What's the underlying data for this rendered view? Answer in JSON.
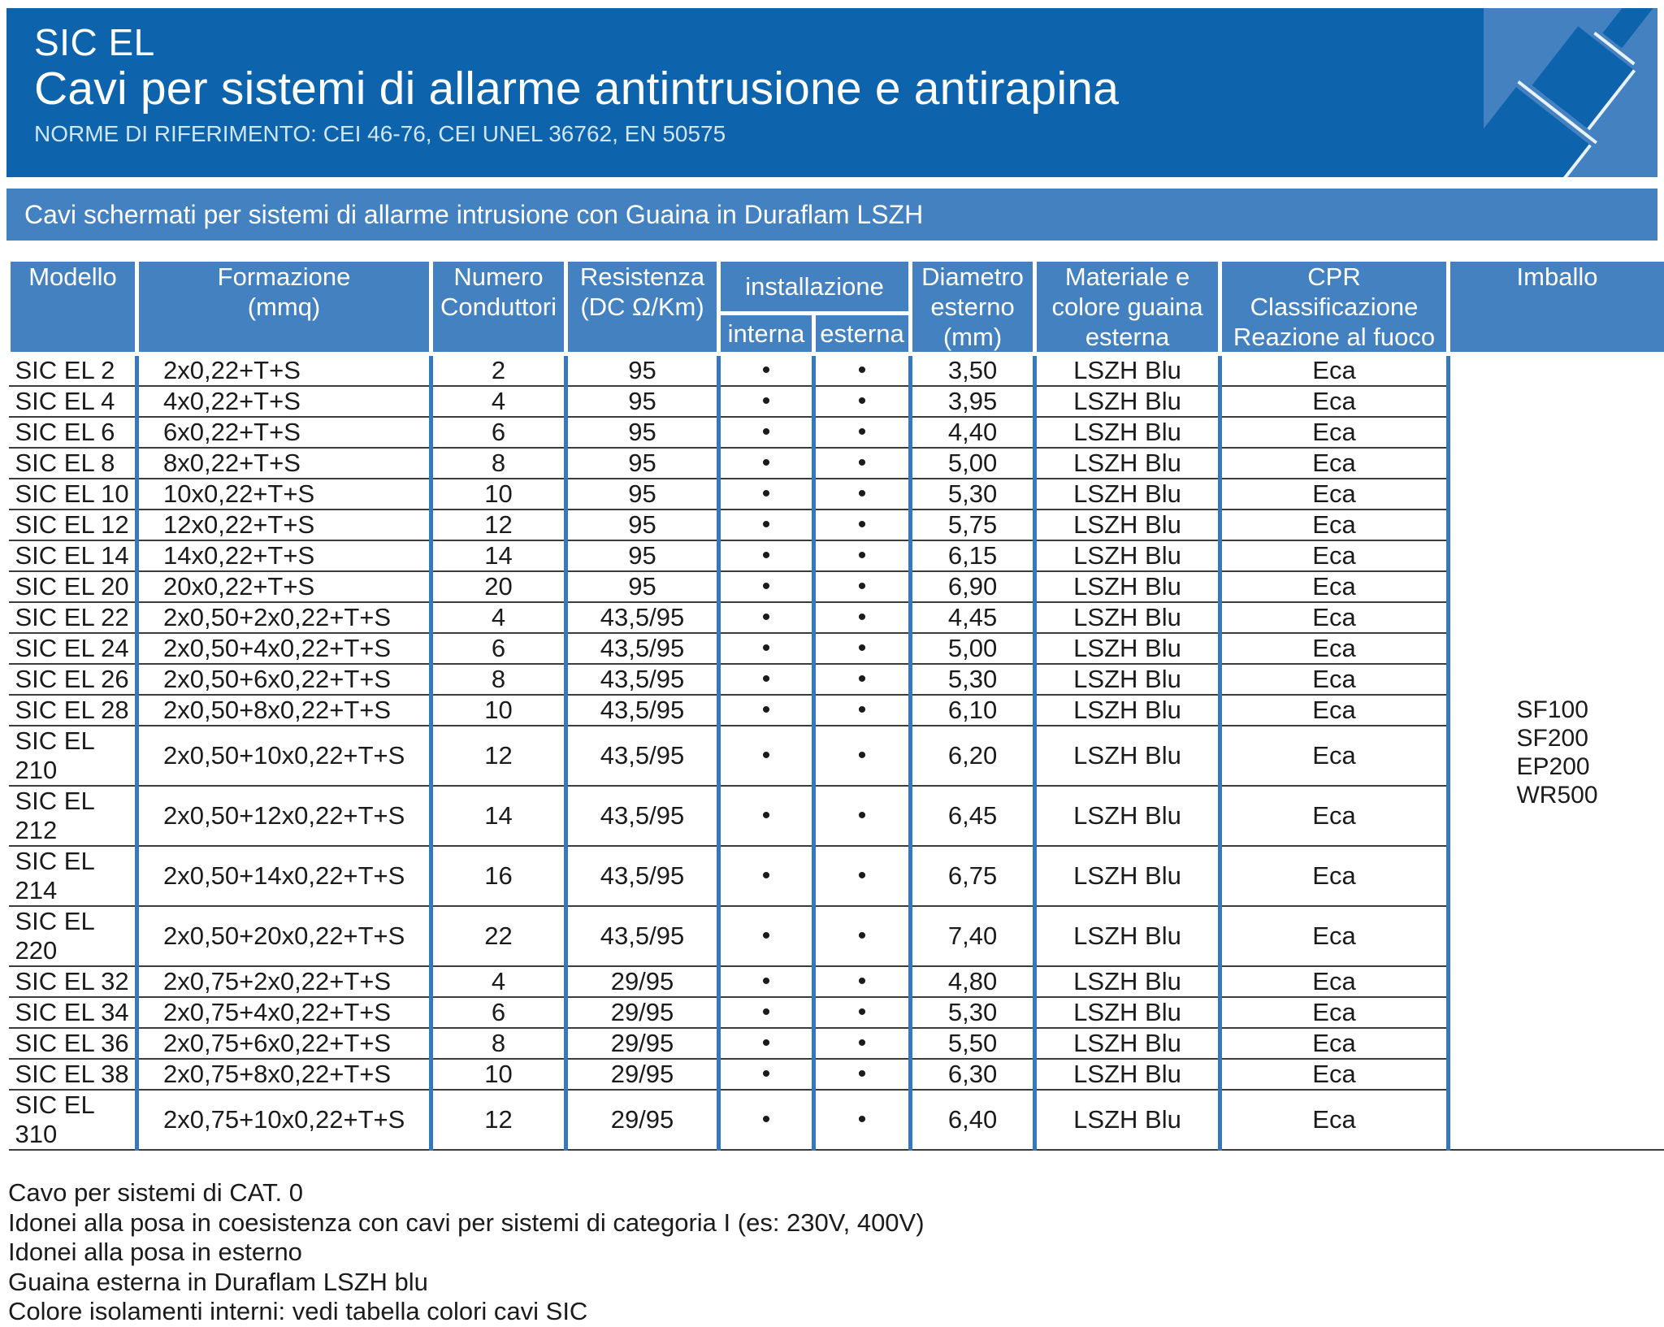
{
  "header": {
    "title": "SIC EL",
    "subtitle": "Cavi per sistemi di allarme antintrusione e antirapina",
    "norms": "NORME DI RIFERIMENTO: CEI 46-76, CEI UNEL 36762, EN 50575"
  },
  "band": {
    "text": "Cavi schermati per sistemi di allarme intrusione con Guaina in Duraflam LSZH"
  },
  "colors": {
    "header_bg": "#0d63ac",
    "band_bg": "#4381c1",
    "grid_blue": "#3579bd",
    "row_line": "#3c3c3c"
  },
  "table": {
    "columns": {
      "modello": "Modello",
      "formazione": "Formazione\n(mmq)",
      "numero": "Numero\nConduttori",
      "resistenza": "Resistenza\n(DC Ω/Km)",
      "installazione": "installazione",
      "interna": "interna",
      "esterna": "esterna",
      "diametro": "Diametro\nesterno\n(mm)",
      "materiale": "Materiale e\ncolore guaina\nesterna",
      "cpr": "CPR\nClassificazione\nReazione al fuoco",
      "imballo": "Imballo"
    },
    "imballo": [
      "SF100",
      "SF200",
      "EP200",
      "WR500"
    ],
    "rows": [
      {
        "model": "SIC EL 2",
        "formazione": "2x0,22+T+S",
        "conduttori": "2",
        "resistenza": "95",
        "interna": "•",
        "esterna": "•",
        "diametro": "3,50",
        "guaina": "LSZH Blu",
        "cpr": "Eca"
      },
      {
        "model": "SIC EL 4",
        "formazione": "4x0,22+T+S",
        "conduttori": "4",
        "resistenza": "95",
        "interna": "•",
        "esterna": "•",
        "diametro": "3,95",
        "guaina": "LSZH Blu",
        "cpr": "Eca"
      },
      {
        "model": "SIC EL 6",
        "formazione": "6x0,22+T+S",
        "conduttori": "6",
        "resistenza": "95",
        "interna": "•",
        "esterna": "•",
        "diametro": "4,40",
        "guaina": "LSZH Blu",
        "cpr": "Eca"
      },
      {
        "model": "SIC EL 8",
        "formazione": "8x0,22+T+S",
        "conduttori": "8",
        "resistenza": "95",
        "interna": "•",
        "esterna": "•",
        "diametro": "5,00",
        "guaina": "LSZH Blu",
        "cpr": "Eca"
      },
      {
        "model": "SIC EL 10",
        "formazione": "10x0,22+T+S",
        "conduttori": "10",
        "resistenza": "95",
        "interna": "•",
        "esterna": "•",
        "diametro": "5,30",
        "guaina": "LSZH Blu",
        "cpr": "Eca"
      },
      {
        "model": "SIC EL 12",
        "formazione": "12x0,22+T+S",
        "conduttori": "12",
        "resistenza": "95",
        "interna": "•",
        "esterna": "•",
        "diametro": "5,75",
        "guaina": "LSZH Blu",
        "cpr": "Eca"
      },
      {
        "model": "SIC EL 14",
        "formazione": "14x0,22+T+S",
        "conduttori": "14",
        "resistenza": "95",
        "interna": "•",
        "esterna": "•",
        "diametro": "6,15",
        "guaina": "LSZH Blu",
        "cpr": "Eca"
      },
      {
        "model": "SIC EL 20",
        "formazione": "20x0,22+T+S",
        "conduttori": "20",
        "resistenza": "95",
        "interna": "•",
        "esterna": "•",
        "diametro": "6,90",
        "guaina": "LSZH Blu",
        "cpr": "Eca"
      },
      {
        "model": "SIC EL 22",
        "formazione": "2x0,50+2x0,22+T+S",
        "conduttori": "4",
        "resistenza": "43,5/95",
        "interna": "•",
        "esterna": "•",
        "diametro": "4,45",
        "guaina": "LSZH Blu",
        "cpr": "Eca"
      },
      {
        "model": "SIC EL 24",
        "formazione": "2x0,50+4x0,22+T+S",
        "conduttori": "6",
        "resistenza": "43,5/95",
        "interna": "•",
        "esterna": "•",
        "diametro": "5,00",
        "guaina": "LSZH Blu",
        "cpr": "Eca"
      },
      {
        "model": "SIC EL 26",
        "formazione": "2x0,50+6x0,22+T+S",
        "conduttori": "8",
        "resistenza": "43,5/95",
        "interna": "•",
        "esterna": "•",
        "diametro": "5,30",
        "guaina": "LSZH Blu",
        "cpr": "Eca"
      },
      {
        "model": "SIC EL 28",
        "formazione": "2x0,50+8x0,22+T+S",
        "conduttori": "10",
        "resistenza": "43,5/95",
        "interna": "•",
        "esterna": "•",
        "diametro": "6,10",
        "guaina": "LSZH Blu",
        "cpr": "Eca"
      },
      {
        "model": "SIC EL 210",
        "formazione": "2x0,50+10x0,22+T+S",
        "conduttori": "12",
        "resistenza": "43,5/95",
        "interna": "•",
        "esterna": "•",
        "diametro": "6,20",
        "guaina": "LSZH Blu",
        "cpr": "Eca"
      },
      {
        "model": "SIC EL 212",
        "formazione": "2x0,50+12x0,22+T+S",
        "conduttori": "14",
        "resistenza": "43,5/95",
        "interna": "•",
        "esterna": "•",
        "diametro": "6,45",
        "guaina": "LSZH Blu",
        "cpr": "Eca"
      },
      {
        "model": "SIC EL 214",
        "formazione": "2x0,50+14x0,22+T+S",
        "conduttori": "16",
        "resistenza": "43,5/95",
        "interna": "•",
        "esterna": "•",
        "diametro": "6,75",
        "guaina": "LSZH Blu",
        "cpr": "Eca"
      },
      {
        "model": "SIC EL 220",
        "formazione": "2x0,50+20x0,22+T+S",
        "conduttori": "22",
        "resistenza": "43,5/95",
        "interna": "•",
        "esterna": "•",
        "diametro": "7,40",
        "guaina": "LSZH Blu",
        "cpr": "Eca"
      },
      {
        "model": "SIC EL 32",
        "formazione": "2x0,75+2x0,22+T+S",
        "conduttori": "4",
        "resistenza": "29/95",
        "interna": "•",
        "esterna": "•",
        "diametro": "4,80",
        "guaina": "LSZH Blu",
        "cpr": "Eca"
      },
      {
        "model": "SIC EL 34",
        "formazione": "2x0,75+4x0,22+T+S",
        "conduttori": "6",
        "resistenza": "29/95",
        "interna": "•",
        "esterna": "•",
        "diametro": "5,30",
        "guaina": "LSZH Blu",
        "cpr": "Eca"
      },
      {
        "model": "SIC EL 36",
        "formazione": "2x0,75+6x0,22+T+S",
        "conduttori": "8",
        "resistenza": "29/95",
        "interna": "•",
        "esterna": "•",
        "diametro": "5,50",
        "guaina": "LSZH Blu",
        "cpr": "Eca"
      },
      {
        "model": "SIC EL 38",
        "formazione": "2x0,75+8x0,22+T+S",
        "conduttori": "10",
        "resistenza": "29/95",
        "interna": "•",
        "esterna": "•",
        "diametro": "6,30",
        "guaina": "LSZH Blu",
        "cpr": "Eca"
      },
      {
        "model": "SIC EL 310",
        "formazione": "2x0,75+10x0,22+T+S",
        "conduttori": "12",
        "resistenza": "29/95",
        "interna": "•",
        "esterna": "•",
        "diametro": "6,40",
        "guaina": "LSZH Blu",
        "cpr": "Eca"
      }
    ]
  },
  "footnotes": [
    "Cavo per sistemi di CAT. 0",
    "Idonei alla posa in coesistenza con cavi per sistemi di categoria I (es: 230V, 400V)",
    "Idonei alla posa in esterno",
    "Guaina esterna in Duraflam LSZH blu",
    "Colore isolamenti interni: vedi tabella colori cavi SIC"
  ]
}
